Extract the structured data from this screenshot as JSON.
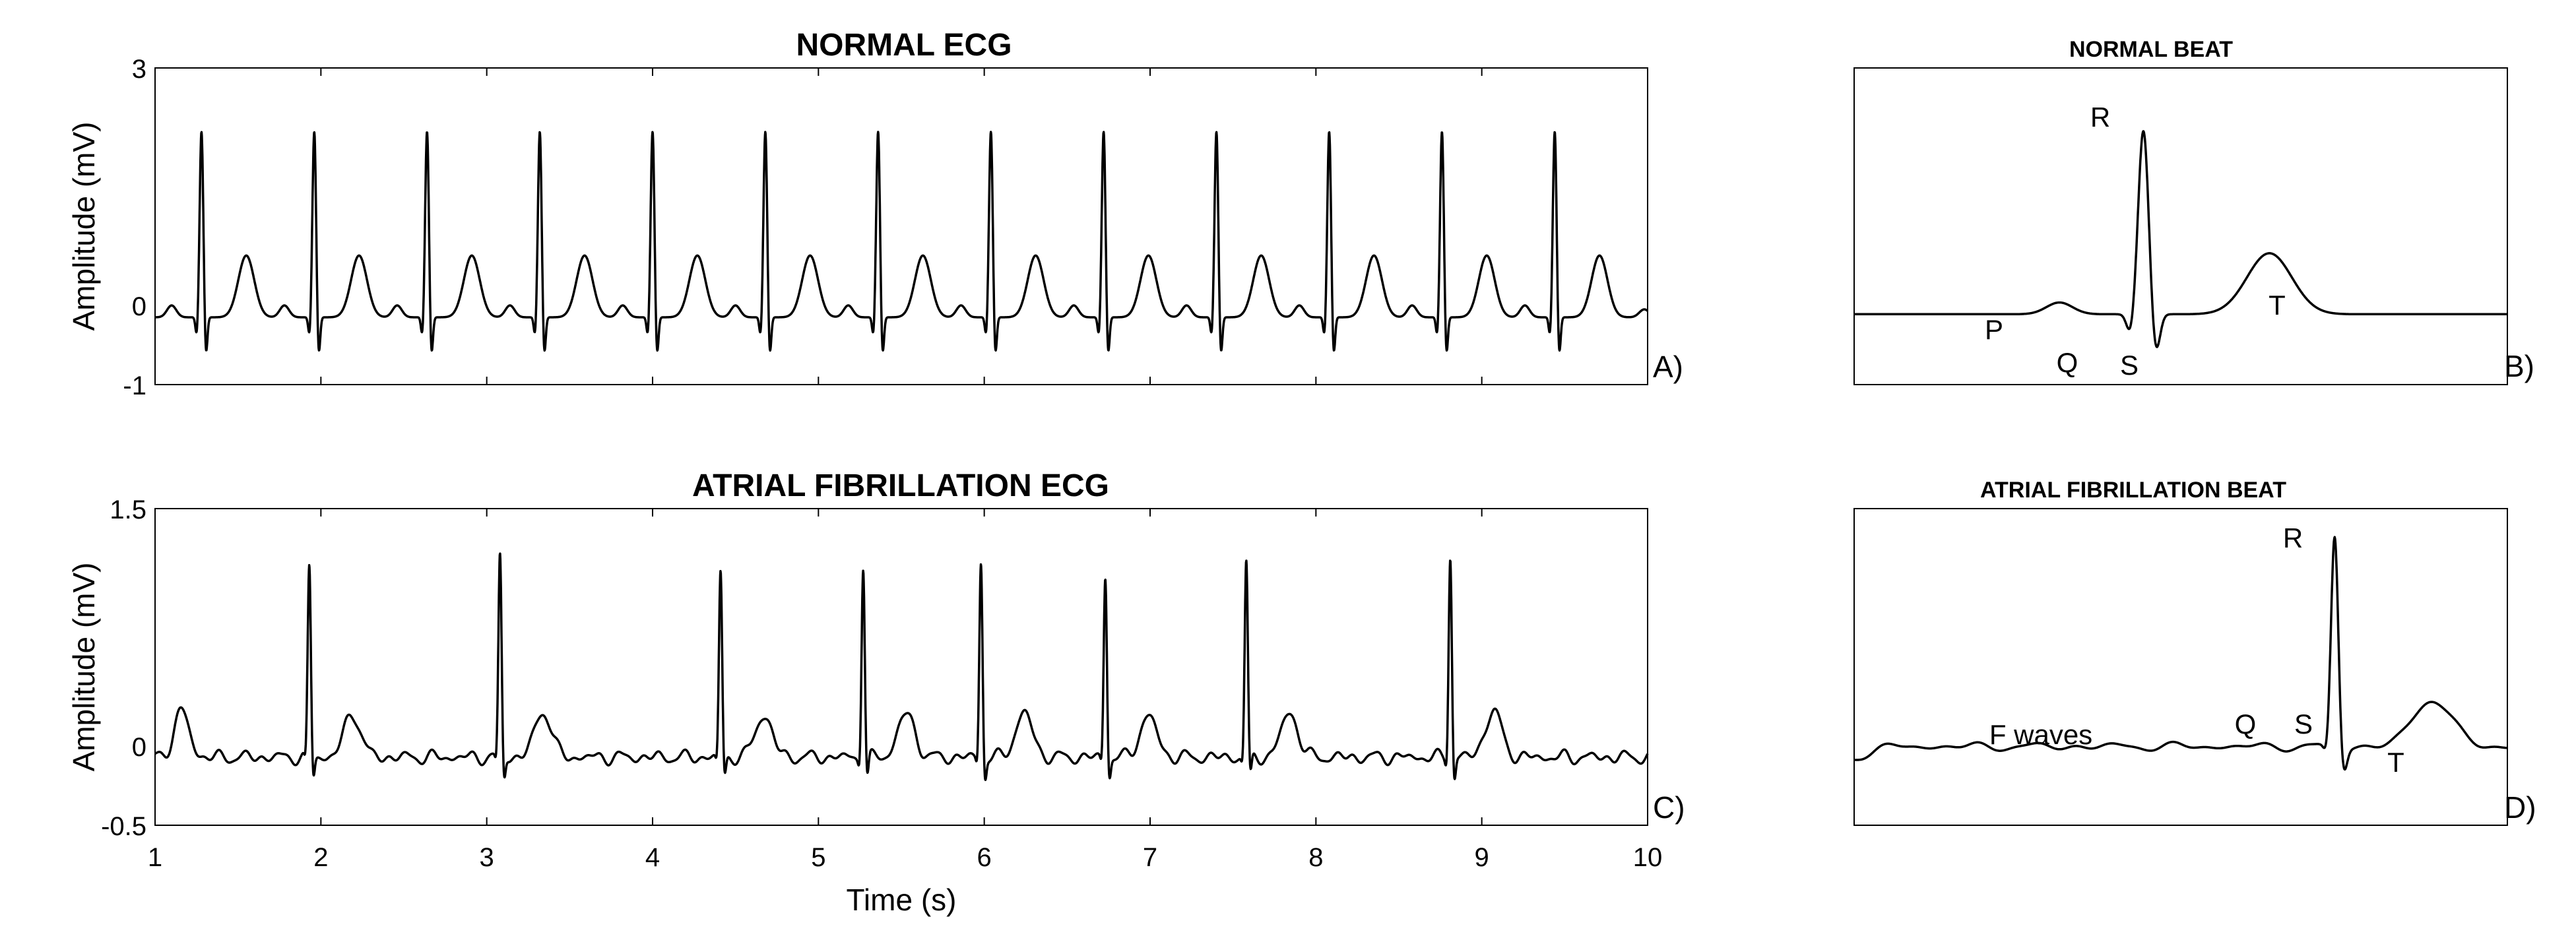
{
  "chart_data": [
    {
      "id": "A",
      "type": "line",
      "title": "NORMAL ECG",
      "panel_label": "A)",
      "xlabel": "",
      "ylabel": "Amplitude (mV)",
      "xlim": [
        1,
        10
      ],
      "ylim": [
        -1,
        3
      ],
      "yticks": [
        3,
        0,
        -1
      ],
      "ytick_labels": [
        "3",
        "0",
        "-1"
      ],
      "series": [
        {
          "name": "Normal ECG",
          "beat_times_s": [
            1.28,
            1.96,
            2.64,
            3.32,
            4.0,
            4.68,
            5.36,
            6.04,
            6.72,
            7.4,
            8.08,
            8.76,
            9.44
          ],
          "r_peak_mV": 2.2,
          "baseline_mV": -0.15,
          "t_wave_mV": 0.6
        }
      ]
    },
    {
      "id": "B",
      "type": "line",
      "title": "NORMAL BEAT",
      "panel_label": "B)",
      "wave_labels": [
        "P",
        "Q",
        "R",
        "S",
        "T"
      ]
    },
    {
      "id": "C",
      "type": "line",
      "title": "ATRIAL FIBRILLATION ECG",
      "panel_label": "C)",
      "xlabel": "Time (s)",
      "ylabel": "Amplitude (mV)",
      "xlim": [
        1,
        10
      ],
      "ylim": [
        -0.5,
        1.5
      ],
      "xticks": [
        1,
        2,
        3,
        4,
        5,
        6,
        7,
        8,
        9,
        10
      ],
      "xtick_labels": [
        "1",
        "2",
        "3",
        "4",
        "5",
        "6",
        "7",
        "8",
        "9",
        "10"
      ],
      "yticks": [
        1.5,
        0,
        -0.5
      ],
      "ytick_labels": [
        "1.5",
        "0",
        "-0.5"
      ],
      "series": [
        {
          "name": "AF ECG",
          "beat_times_s": [
            1.93,
            3.08,
            4.41,
            5.27,
            5.98,
            6.73,
            7.58,
            8.81
          ],
          "r_peaks_mV": [
            1.2,
            1.27,
            1.17,
            1.22,
            1.24,
            1.15,
            1.23,
            1.28
          ],
          "baseline_mV": -0.07,
          "t_wave_mV": 0.22
        }
      ]
    },
    {
      "id": "D",
      "type": "line",
      "title": "ATRIAL FIBRILLATION BEAT",
      "panel_label": "D)",
      "wave_labels": [
        "F waves",
        "Q",
        "R",
        "S",
        "T"
      ]
    }
  ]
}
